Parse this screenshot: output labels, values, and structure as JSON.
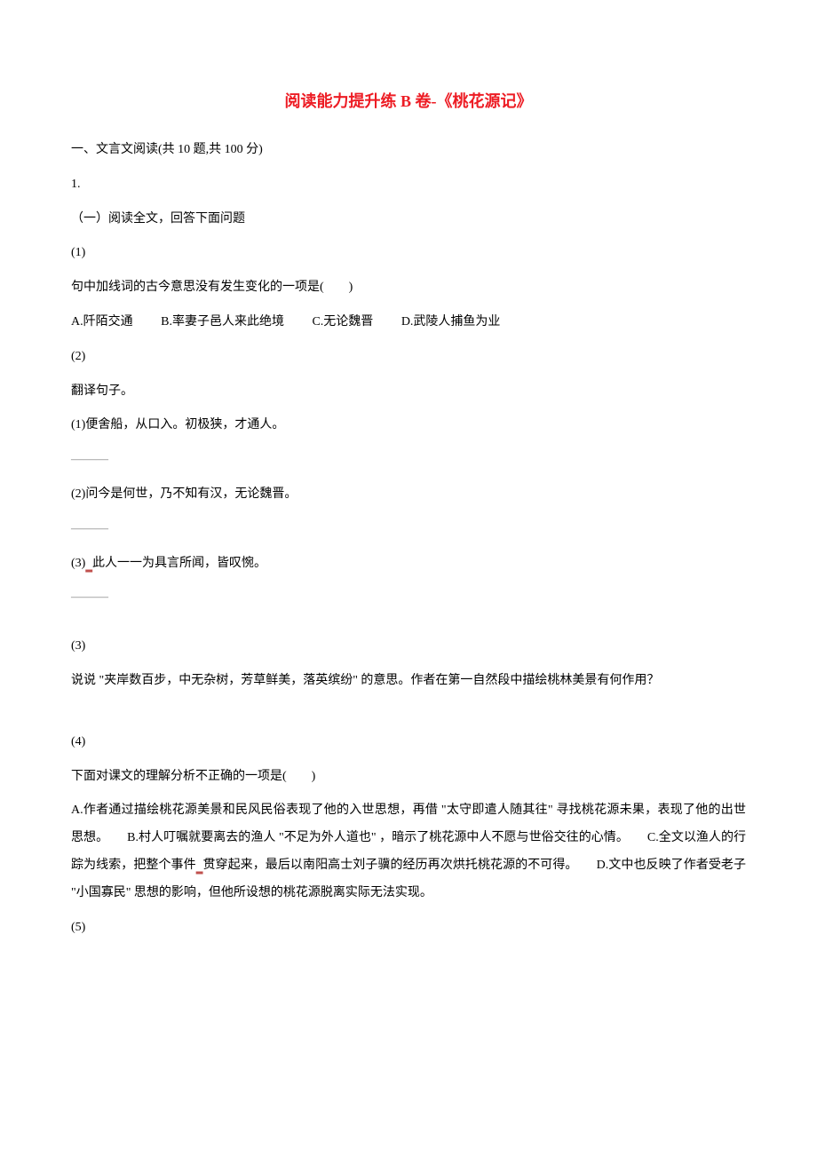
{
  "title": "阅读能力提升练 B 卷-《桃花源记》",
  "section_header": "一、文言文阅读(共 10 题,共 100 分)",
  "q1": {
    "num": "1.",
    "intro": "（一）阅读全文，回答下面问题",
    "sub1": {
      "num": "(1)",
      "text": "句中加线词的古今意思没有发生变化的一项是(　　)",
      "options": {
        "a": "A.阡陌交通",
        "b": "B.率妻子邑人来此绝境",
        "c": "C.无论魏晋",
        "d": "D.武陵人捕鱼为业"
      }
    },
    "sub2": {
      "num": "(2)",
      "text": "翻译句子。",
      "item1": "(1)便舍船，从口入。初极狭，才通人。",
      "item2": "(2)问今是何世，乃不知有汉，无论魏晋。",
      "item3_pre": "(3)",
      "item3_post": "此人一一为具言所闻，皆叹惋。",
      "dash": "———"
    },
    "sub3": {
      "num": "(3)",
      "text": "说说 \"夹岸数百步，中无杂树，芳草鲜美，落英缤纷\" 的意思。作者在第一自然段中描绘桃林美景有何作用？"
    },
    "sub4": {
      "num": "(4)",
      "text": "下面对课文的理解分析不正确的一项是(　　)",
      "long_pre": "A.作者通过描绘桃花源美景和民风民俗表现了他的入世思想，再借 \"太守即遣人随其往\" 寻找桃花源未果，表现了他的出世思想。　　B.村人叮嘱就要离去的渔人 \"不足为外人道也\" ，暗示了桃花源中人不愿与世俗交往的心情。　　C.全文以渔人的行踪为线索，把整个事件",
      "long_post": "贯穿起来，最后以南阳高士刘子骥的经历再次烘托桃花源的不可得。　　D.文中也反映了作者受老子 \"小国寡民\" 思想的影响，但他所设想的桃花源脱离实际无法实现。"
    },
    "sub5": {
      "num": "(5)"
    }
  },
  "colors": {
    "title": "#ed1c24",
    "text": "#000000",
    "dash": "#808080",
    "dot": "#c0504d",
    "background": "#ffffff"
  },
  "typography": {
    "title_fontsize": 18,
    "body_fontsize": 14,
    "line_height": 2.2,
    "font_family": "SimSun"
  }
}
